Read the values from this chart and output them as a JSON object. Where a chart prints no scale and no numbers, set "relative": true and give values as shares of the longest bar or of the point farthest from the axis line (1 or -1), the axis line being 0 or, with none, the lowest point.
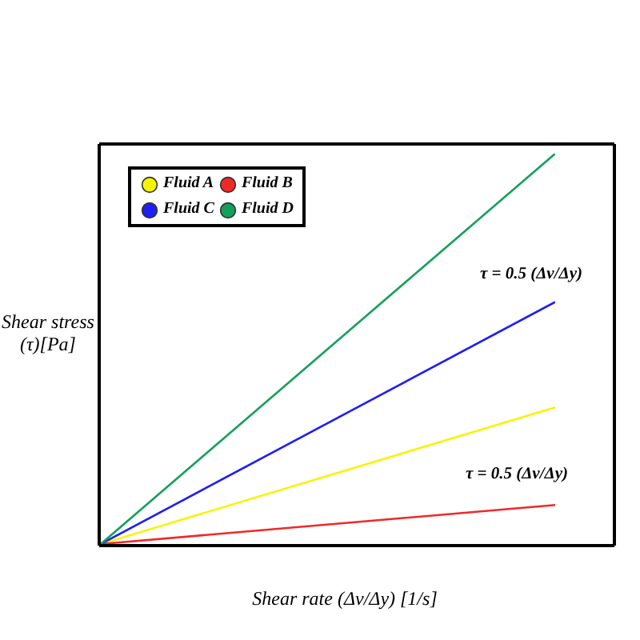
{
  "chart_data": {
    "type": "line",
    "xlabel": "Shear rate (Δv/Δy) [1/s]",
    "ylabel": "Shear stress (τ)[Pa]",
    "categories": [
      null,
      null
    ],
    "relative": true,
    "series": [
      {
        "name": "Fluid A",
        "color": "#f5f500",
        "values": [
          0,
          0.35
        ]
      },
      {
        "name": "Fluid B",
        "color": "#f02828",
        "values": [
          0,
          0.1
        ]
      },
      {
        "name": "Fluid C",
        "color": "#1e1ef5",
        "values": [
          0,
          0.62
        ]
      },
      {
        "name": "Fluid D",
        "color": "#14a05a",
        "values": [
          0,
          1
        ]
      }
    ],
    "annotations": [
      "τ = 0.5 (Δv/Δy)",
      "τ = 0.5 (Δv/Δy)"
    ],
    "legend": "top left",
    "marker": "none"
  }
}
